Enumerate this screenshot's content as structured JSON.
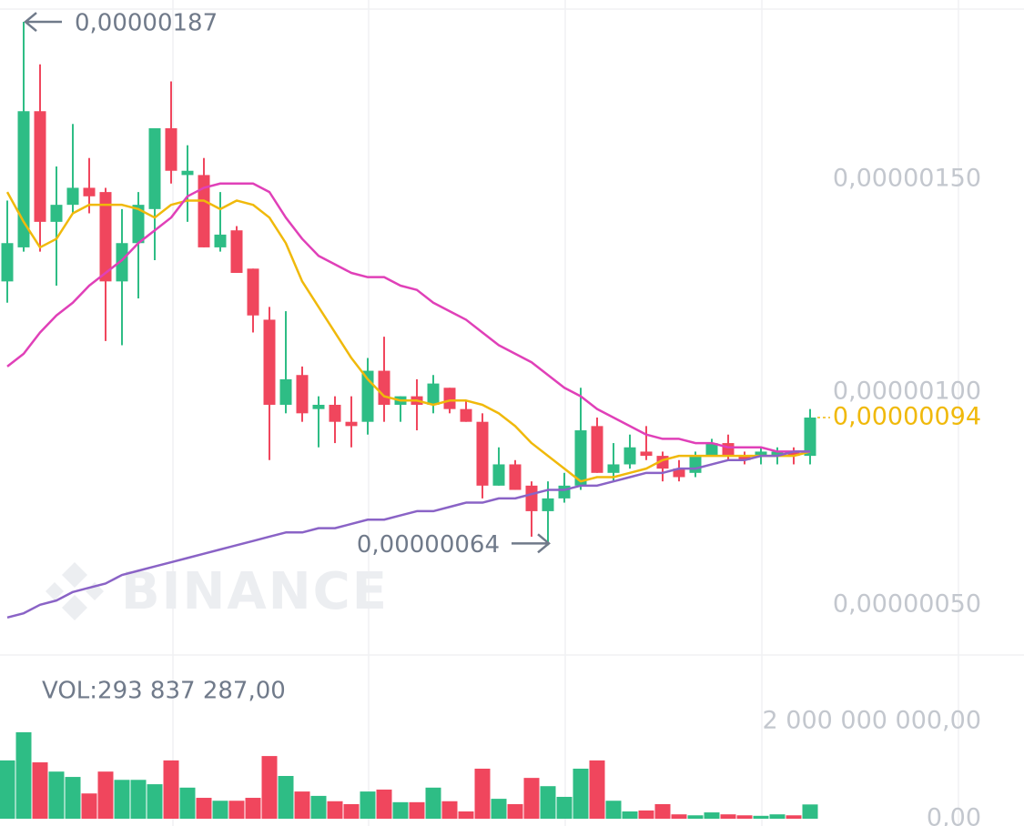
{
  "chart_data": {
    "type": "candlestick",
    "up_color": "#2ebd85",
    "down_color": "#f0465d",
    "open": [
      1.26e-06,
      1.34e-06,
      1.66e-06,
      1.4e-06,
      1.44e-06,
      1.48e-06,
      1.47e-06,
      1.26e-06,
      1.35e-06,
      1.43e-06,
      1.62e-06,
      1.51e-06,
      1.51e-06,
      1.34e-06,
      1.38e-06,
      1.29e-06,
      1.17e-06,
      9.7e-07,
      1.04e-06,
      9.6e-07,
      9.7e-07,
      9.3e-07,
      9.3e-07,
      1.05e-06,
      9.7e-07,
      9.9e-07,
      9.7e-07,
      1.01e-06,
      9.6e-07,
      9.3e-07,
      7.8e-07,
      8.3e-07,
      7.8e-07,
      7.2e-07,
      7.5e-07,
      7.8e-07,
      9.2e-07,
      8.1e-07,
      8.3e-07,
      8.6e-07,
      8.5e-07,
      8.2e-07,
      8.1e-07,
      8.5e-07,
      8.8e-07,
      8.5e-07,
      8.5e-07,
      8.5e-07,
      8.6e-07,
      8.5e-07
    ],
    "high": [
      1.45e-06,
      1.87e-06,
      1.77e-06,
      1.53e-06,
      1.63e-06,
      1.55e-06,
      1.48e-06,
      1.43e-06,
      1.47e-06,
      1.62e-06,
      1.73e-06,
      1.58e-06,
      1.55e-06,
      1.47e-06,
      1.39e-06,
      1.29e-06,
      1.2e-06,
      1.19e-06,
      1.06e-06,
      9.9e-07,
      9.9e-07,
      9.9e-07,
      1.08e-06,
      1.13e-06,
      9.9e-07,
      1.03e-06,
      1.04e-06,
      1.01e-06,
      9.8e-07,
      9.5e-07,
      8.7e-07,
      8.4e-07,
      7.9e-07,
      7.9e-07,
      8.1e-07,
      1.01e-06,
      9.4e-07,
      8.8e-07,
      9e-07,
      9.2e-07,
      8.6e-07,
      8.4e-07,
      8.6e-07,
      8.9e-07,
      9e-07,
      8.6e-07,
      8.7e-07,
      8.7e-07,
      8.7e-07,
      9.6e-07
    ],
    "low": [
      1.21e-06,
      1.33e-06,
      1.33e-06,
      1.25e-06,
      1.42e-06,
      1.42e-06,
      1.12e-06,
      1.11e-06,
      1.22e-06,
      1.31e-06,
      1.49e-06,
      1.4e-06,
      1.34e-06,
      1.33e-06,
      1.28e-06,
      1.14e-06,
      8.4e-07,
      9.5e-07,
      9.3e-07,
      8.7e-07,
      8.8e-07,
      8.7e-07,
      9e-07,
      9.3e-07,
      9.3e-07,
      9.1e-07,
      9.5e-07,
      9.5e-07,
      9.3e-07,
      7.5e-07,
      7.8e-07,
      7.7e-07,
      6.6e-07,
      6.4e-07,
      7.4e-07,
      7.7e-07,
      8.1e-07,
      7.9e-07,
      8.2e-07,
      8.4e-07,
      7.9e-07,
      7.9e-07,
      8e-07,
      8.5e-07,
      8.4e-07,
      8.3e-07,
      8.3e-07,
      8.3e-07,
      8.3e-07,
      8.3e-07
    ],
    "close": [
      1.35e-06,
      1.66e-06,
      1.4e-06,
      1.44e-06,
      1.48e-06,
      1.46e-06,
      1.26e-06,
      1.35e-06,
      1.44e-06,
      1.62e-06,
      1.52e-06,
      1.52e-06,
      1.34e-06,
      1.37e-06,
      1.28e-06,
      1.18e-06,
      9.7e-07,
      1.03e-06,
      9.5e-07,
      9.7e-07,
      9.3e-07,
      9.2e-07,
      1.05e-06,
      9.7e-07,
      9.9e-07,
      9.7e-07,
      1.02e-06,
      9.6e-07,
      9.3e-07,
      7.8e-07,
      8.3e-07,
      7.7e-07,
      7.2e-07,
      7.5e-07,
      7.8e-07,
      9.1e-07,
      8.1e-07,
      8.3e-07,
      8.7e-07,
      8.5e-07,
      8.2e-07,
      8e-07,
      8.5e-07,
      8.8e-07,
      8.5e-07,
      8.4e-07,
      8.6e-07,
      8.6e-07,
      8.5e-07,
      9.4e-07
    ],
    "moving_averages": [
      {
        "color": "#f0b90b",
        "values": [
          1.47e-06,
          1.4e-06,
          1.34e-06,
          1.36e-06,
          1.42e-06,
          1.44e-06,
          1.44e-06,
          1.44e-06,
          1.43e-06,
          1.41e-06,
          1.44e-06,
          1.45e-06,
          1.45e-06,
          1.43e-06,
          1.45e-06,
          1.44e-06,
          1.41e-06,
          1.35e-06,
          1.26e-06,
          1.2e-06,
          1.14e-06,
          1.08e-06,
          1.03e-06,
          9.9e-07,
          9.8e-07,
          9.8e-07,
          9.7e-07,
          9.8e-07,
          9.8e-07,
          9.7e-07,
          9.5e-07,
          9.2e-07,
          8.8e-07,
          8.5e-07,
          8.2e-07,
          7.9e-07,
          8e-07,
          8e-07,
          8.1e-07,
          8.2e-07,
          8.4e-07,
          8.5e-07,
          8.5e-07,
          8.5e-07,
          8.5e-07,
          8.5e-07,
          8.5e-07,
          8.5e-07,
          8.5e-07,
          8.6e-07
        ]
      },
      {
        "color": "#e040b8",
        "values": [
          1.06e-06,
          1.09e-06,
          1.14e-06,
          1.18e-06,
          1.21e-06,
          1.25e-06,
          1.28e-06,
          1.31e-06,
          1.35e-06,
          1.38e-06,
          1.41e-06,
          1.46e-06,
          1.48e-06,
          1.49e-06,
          1.49e-06,
          1.49e-06,
          1.47e-06,
          1.41e-06,
          1.36e-06,
          1.32e-06,
          1.3e-06,
          1.28e-06,
          1.27e-06,
          1.27e-06,
          1.25e-06,
          1.24e-06,
          1.21e-06,
          1.19e-06,
          1.17e-06,
          1.14e-06,
          1.11e-06,
          1.09e-06,
          1.07e-06,
          1.04e-06,
          1.01e-06,
          9.9e-07,
          9.6e-07,
          9.4e-07,
          9.2e-07,
          9e-07,
          8.9e-07,
          8.9e-07,
          8.8e-07,
          8.8e-07,
          8.7e-07,
          8.7e-07,
          8.7e-07,
          8.6e-07,
          8.6e-07,
          8.6e-07
        ]
      },
      {
        "color": "#8a63c6",
        "values": [
          4.7e-07,
          4.8e-07,
          5e-07,
          5.1e-07,
          5.3e-07,
          5.4e-07,
          5.5e-07,
          5.7e-07,
          5.8e-07,
          5.9e-07,
          6e-07,
          6.1e-07,
          6.2e-07,
          6.3e-07,
          6.4e-07,
          6.5e-07,
          6.6e-07,
          6.7e-07,
          6.7e-07,
          6.8e-07,
          6.8e-07,
          6.9e-07,
          7e-07,
          7e-07,
          7.1e-07,
          7.2e-07,
          7.2e-07,
          7.3e-07,
          7.4e-07,
          7.4e-07,
          7.5e-07,
          7.5e-07,
          7.6e-07,
          7.7e-07,
          7.7e-07,
          7.8e-07,
          7.8e-07,
          7.9e-07,
          8e-07,
          8.1e-07,
          8.1e-07,
          8.2e-07,
          8.2e-07,
          8.3e-07,
          8.4e-07,
          8.4e-07,
          8.5e-07,
          8.5e-07,
          8.6e-07,
          8.6e-07
        ]
      }
    ],
    "ylim": [
      3.82e-07,
      1.9e-06
    ],
    "yticks": [
      {
        "value": 1.5e-06,
        "label": "0,00000150"
      },
      {
        "value": 1e-06,
        "label": "0,00000100"
      },
      {
        "value": 5e-07,
        "label": "0,00000050"
      }
    ],
    "high_label": {
      "value": 1.87e-06,
      "label": "0,00000187"
    },
    "low_label": {
      "value": 6.4e-07,
      "label": "0,00000064"
    },
    "last_price": {
      "value": 9.4e-07,
      "label": "0,00000094",
      "color": "#f0b90b"
    },
    "watermark": "BINANCE",
    "volume": {
      "label": "VOL:293 837 287,00",
      "values": [
        1200000000,
        1780000000,
        1160000000,
        970000000,
        860000000,
        520000000,
        970000000,
        800000000,
        800000000,
        710000000,
        1200000000,
        640000000,
        430000000,
        370000000,
        370000000,
        430000000,
        1290000000,
        880000000,
        560000000,
        470000000,
        360000000,
        300000000,
        560000000,
        600000000,
        340000000,
        340000000,
        640000000,
        360000000,
        150000000,
        1030000000,
        410000000,
        300000000,
        840000000,
        670000000,
        450000000,
        1030000000,
        1200000000,
        370000000,
        150000000,
        170000000,
        300000000,
        90000000,
        70000000,
        130000000,
        90000000,
        70000000,
        60000000,
        90000000,
        70000000,
        293837287
      ],
      "ylim": [
        0,
        3370000000
      ],
      "yticks": [
        {
          "value": 2000000000,
          "label": "2 000 000 000,00"
        },
        {
          "value": 0,
          "label": "0,00"
        }
      ]
    }
  }
}
